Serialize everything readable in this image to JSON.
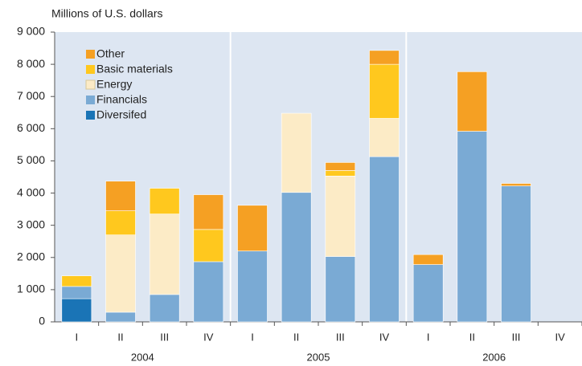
{
  "chart_data": {
    "type": "stacked_bar",
    "y_axis_label": "Millions of U.S. dollars",
    "categories": [
      "I",
      "II",
      "III",
      "IV",
      "I",
      "II",
      "III",
      "IV",
      "I",
      "II",
      "III",
      "IV"
    ],
    "groups": [
      "2004",
      "2005",
      "2006"
    ],
    "series": [
      {
        "name": "Diversifed",
        "color": "#1a74b6",
        "values": [
          720,
          null,
          null,
          null,
          null,
          null,
          null,
          null,
          null,
          null,
          null,
          null
        ]
      },
      {
        "name": "Financials",
        "color": "#7aaad4",
        "values": [
          380,
          300,
          850,
          1870,
          2200,
          4020,
          2030,
          5130,
          1780,
          5920,
          4220,
          null
        ]
      },
      {
        "name": "Energy",
        "color": "#fcebc6",
        "values": [
          null,
          2400,
          2500,
          null,
          null,
          2460,
          2500,
          1190,
          null,
          null,
          null,
          null
        ]
      },
      {
        "name": "Basic materials",
        "color": "#ffc81e",
        "values": [
          330,
          750,
          800,
          1000,
          null,
          null,
          170,
          1680,
          null,
          null,
          null,
          null
        ]
      },
      {
        "name": "Other",
        "color": "#f5a023",
        "values": [
          null,
          920,
          null,
          1080,
          1420,
          null,
          250,
          430,
          310,
          1850,
          80,
          null
        ]
      }
    ],
    "ylim": [
      0,
      9000
    ],
    "yticks": [
      0,
      {
        "value": 1000,
        "label": "1 000"
      },
      {
        "value": 2000,
        "label": "2 000"
      },
      {
        "value": 3000,
        "label": "3 000"
      },
      {
        "value": 4000,
        "label": "4 000"
      },
      {
        "value": 5000,
        "label": "5 000"
      },
      {
        "value": 6000,
        "label": "6 000"
      },
      {
        "value": 7000,
        "label": "7 000"
      },
      {
        "value": 8000,
        "label": "8 000"
      },
      {
        "value": 9000,
        "label": "9 000"
      }
    ],
    "legend": "upper left",
    "background": "#dde6f2"
  }
}
